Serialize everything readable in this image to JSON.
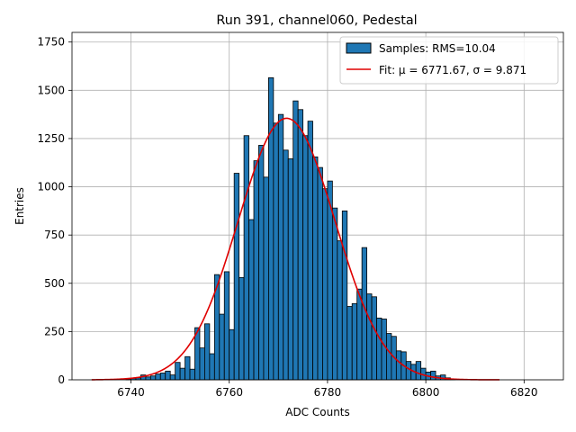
{
  "chart_data": {
    "type": "bar",
    "title": "Run 391, channel060, Pedestal",
    "xlabel": "ADC Counts",
    "ylabel": "Entries",
    "xlim": [
      6728,
      6828
    ],
    "ylim": [
      0,
      1800
    ],
    "xticks": [
      6740,
      6760,
      6780,
      6800,
      6820
    ],
    "yticks": [
      0,
      250,
      500,
      750,
      1000,
      1250,
      1500,
      1750
    ],
    "grid": true,
    "legend_position": "top-right",
    "bin_width": 1,
    "histogram": {
      "name": "Samples: RMS=10.04",
      "color": "#1f77b4",
      "edgecolor": "#000000",
      "bins": [
        [
          6739,
          5
        ],
        [
          6740,
          8
        ],
        [
          6741,
          10
        ],
        [
          6742,
          25
        ],
        [
          6743,
          15
        ],
        [
          6744,
          20
        ],
        [
          6745,
          30
        ],
        [
          6746,
          35
        ],
        [
          6747,
          45
        ],
        [
          6748,
          25
        ],
        [
          6749,
          90
        ],
        [
          6750,
          60
        ],
        [
          6751,
          120
        ],
        [
          6752,
          55
        ],
        [
          6753,
          270
        ],
        [
          6754,
          165
        ],
        [
          6755,
          290
        ],
        [
          6756,
          135
        ],
        [
          6757,
          545
        ],
        [
          6758,
          340
        ],
        [
          6759,
          560
        ],
        [
          6760,
          260
        ],
        [
          6761,
          1070
        ],
        [
          6762,
          530
        ],
        [
          6763,
          1265
        ],
        [
          6764,
          830
        ],
        [
          6765,
          1135
        ],
        [
          6766,
          1215
        ],
        [
          6767,
          1050
        ],
        [
          6768,
          1565
        ],
        [
          6769,
          1330
        ],
        [
          6770,
          1375
        ],
        [
          6771,
          1190
        ],
        [
          6772,
          1145
        ],
        [
          6773,
          1445
        ],
        [
          6774,
          1400
        ],
        [
          6775,
          1265
        ],
        [
          6776,
          1340
        ],
        [
          6777,
          1155
        ],
        [
          6778,
          1100
        ],
        [
          6779,
          990
        ],
        [
          6780,
          1030
        ],
        [
          6781,
          890
        ],
        [
          6782,
          720
        ],
        [
          6783,
          875
        ],
        [
          6784,
          380
        ],
        [
          6785,
          395
        ],
        [
          6786,
          470
        ],
        [
          6787,
          685
        ],
        [
          6788,
          445
        ],
        [
          6789,
          430
        ],
        [
          6790,
          320
        ],
        [
          6791,
          315
        ],
        [
          6792,
          240
        ],
        [
          6793,
          225
        ],
        [
          6794,
          150
        ],
        [
          6795,
          145
        ],
        [
          6796,
          95
        ],
        [
          6797,
          80
        ],
        [
          6798,
          95
        ],
        [
          6799,
          60
        ],
        [
          6800,
          40
        ],
        [
          6801,
          45
        ],
        [
          6802,
          20
        ],
        [
          6803,
          25
        ],
        [
          6804,
          10
        ],
        [
          6805,
          5
        ]
      ]
    },
    "fit": {
      "name": "Fit: μ = 6771.67, σ = 9.871",
      "color": "#e00000",
      "mu": 6771.67,
      "sigma": 9.871,
      "amplitude": 1355,
      "x_range": [
        6732,
        6815
      ]
    }
  }
}
